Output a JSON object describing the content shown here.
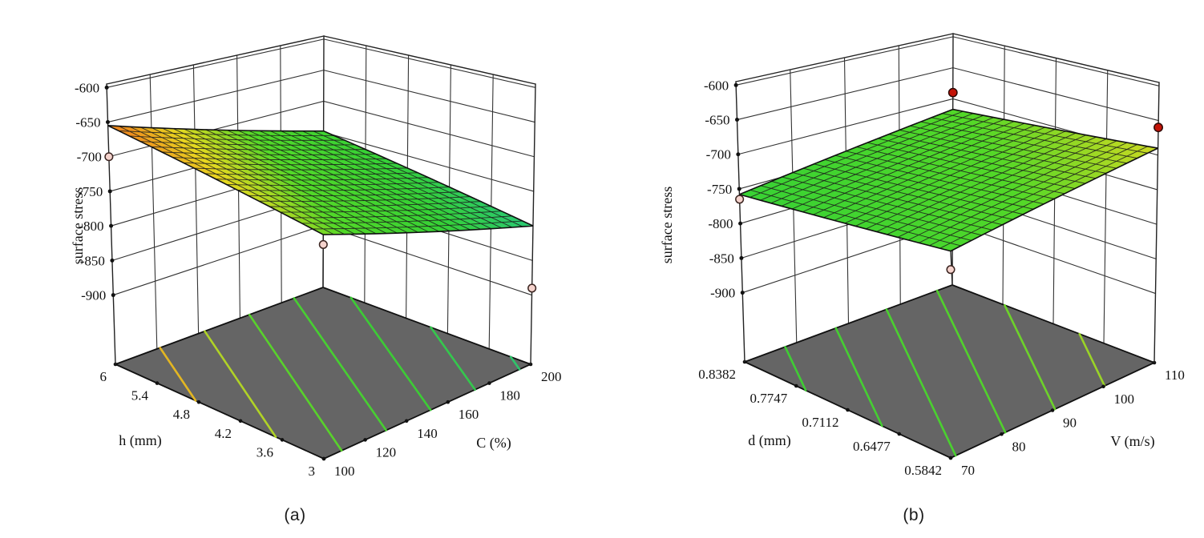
{
  "figure": {
    "description": "Two 3D response surface plots of surface stress",
    "background": "#ffffff"
  },
  "chart_data": [
    {
      "type": "surface3d",
      "caption": "(a)",
      "zlabel": "surface stress",
      "xlabel": "h (mm)",
      "ylabel": "C (%)",
      "x_ticks": [
        "6",
        "5.4",
        "4.8",
        "4.2",
        "3.6",
        "3"
      ],
      "y_ticks": [
        "100",
        "120",
        "140",
        "160",
        "180",
        "200"
      ],
      "z_ticks": [
        "-600",
        "-650",
        "-700",
        "-750",
        "-800",
        "-850",
        "-900"
      ],
      "z_tick_values": [
        -600,
        -650,
        -700,
        -750,
        -800,
        -850,
        -900
      ],
      "x_range": [
        6,
        3
      ],
      "y_range": [
        100,
        200
      ],
      "box_z_range": [
        -1000,
        -595
      ],
      "surface": {
        "grid": 20,
        "z_corners": {
          "x0_y0": -655,
          "x1_y0": -707,
          "x0_y1": -748,
          "x1_y1": -800
        }
      },
      "contour_levels": [
        -675,
        -695,
        -715,
        -735,
        -755,
        -775,
        -795
      ],
      "design_points": [
        {
          "x": "6",
          "y": "100",
          "u": 0,
          "v": 0,
          "z": -700,
          "position": "below-surface"
        },
        {
          "x": "3",
          "y": "100",
          "u": 1,
          "v": 0,
          "z": -720,
          "position": "below-surface"
        },
        {
          "x": "3",
          "y": "200",
          "u": 1,
          "v": 1,
          "z": -890,
          "position": "below-surface"
        }
      ]
    },
    {
      "type": "surface3d",
      "caption": "(b)",
      "zlabel": "surface stress",
      "xlabel": "d (mm)",
      "ylabel": "V (m/s)",
      "x_ticks": [
        "0.8382",
        "0.7747",
        "0.7112",
        "0.6477",
        "0.5842"
      ],
      "y_ticks": [
        "70",
        "80",
        "90",
        "100",
        "110"
      ],
      "z_ticks": [
        "-600",
        "-650",
        "-700",
        "-750",
        "-800",
        "-850",
        "-900"
      ],
      "z_tick_values": [
        -600,
        -650,
        -700,
        -750,
        -800,
        -850,
        -900
      ],
      "x_range": [
        0.8382,
        0.5842
      ],
      "y_range": [
        70,
        110
      ],
      "box_z_range": [
        -1000,
        -595
      ],
      "surface": {
        "grid": 20,
        "z_corners": {
          "x0_y0": -758,
          "x1_y0": -731,
          "x0_y1": -717,
          "x1_y1": -690
        }
      },
      "contour_levels": [
        -750,
        -740,
        -730,
        -720,
        -710,
        -700
      ],
      "design_points": [
        {
          "x": "0.8382",
          "y": "70",
          "u": 0,
          "v": 0,
          "z": -765,
          "position": "below-surface"
        },
        {
          "x": "0.5842",
          "y": "70",
          "u": 1,
          "v": 0,
          "z": -755,
          "position": "below-surface"
        },
        {
          "x": "0.8382",
          "y": "110",
          "u": 0,
          "v": 1,
          "z": -690,
          "position": "above-surface"
        },
        {
          "x": "0.5842",
          "y": "110",
          "u": 1,
          "v": 1,
          "z": -660,
          "position": "above-surface"
        }
      ]
    }
  ],
  "style": {
    "colormap_range": [
      -940,
      -620
    ],
    "colormap_stops": [
      [
        0.0,
        "#3a6fd8"
      ],
      [
        0.32,
        "#1fc0a8"
      ],
      [
        0.44,
        "#2ac873"
      ],
      [
        0.56,
        "#36d135"
      ],
      [
        0.7,
        "#52d828"
      ],
      [
        0.8,
        "#e8d920"
      ],
      [
        0.87,
        "#ee8f1e"
      ],
      [
        1.0,
        "#de3a1c"
      ]
    ],
    "floor_color": "#656565",
    "frame_color": "#222222",
    "wall_grid_color": "#333333",
    "point_below_fill": "#f5d3cd",
    "point_above_fill": "#c41408",
    "point_stroke": "#3a2420",
    "text_color": "#111111"
  }
}
